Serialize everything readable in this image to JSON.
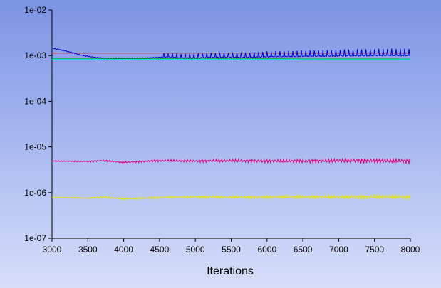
{
  "chart_data": {
    "type": "line",
    "title": "",
    "xlabel": "Iterations",
    "ylabel": "",
    "xlim": [
      3000,
      8000
    ],
    "ylim": [
      1e-07,
      0.01
    ],
    "yscale": "log",
    "grid": false,
    "legend": "none",
    "x_ticks": [
      "3000",
      "3500",
      "4000",
      "4500",
      "5000",
      "5500",
      "6000",
      "6500",
      "7000",
      "7500",
      "8000"
    ],
    "y_ticks": [
      "1e-07",
      "1e-06",
      "1e-05",
      "1e-04",
      "1e-03",
      "1e-02"
    ],
    "series": [
      {
        "color": "#d42020",
        "x": [
          3000,
          8000
        ],
        "y": [
          0.00113,
          0.00113
        ]
      },
      {
        "color": "#0000cc",
        "x": [
          3000,
          3200,
          3400,
          3600,
          3800,
          4000,
          4300,
          4600,
          4800,
          5000,
          5200,
          5400,
          5600,
          5800,
          6000,
          6500,
          7000,
          7500,
          8000
        ],
        "y": [
          0.00145,
          0.00125,
          0.00102,
          0.00091,
          0.00086,
          0.00087,
          0.00088,
          0.00093,
          0.00089,
          0.00088,
          0.00092,
          0.00092,
          0.00091,
          0.00092,
          0.00094,
          0.00096,
          0.00098,
          0.001,
          0.001
        ]
      },
      {
        "color": "#00aa00",
        "x": [
          3000,
          8000
        ],
        "y": [
          0.00085,
          0.00084
        ]
      },
      {
        "color": "#00e8e8",
        "x": [
          3000,
          8000
        ],
        "y": [
          0.00083,
          0.00082
        ]
      },
      {
        "color": "#e0007a",
        "x": [
          3000,
          3500,
          3700,
          4000,
          4500,
          5000,
          5500,
          6000,
          6500,
          7000,
          7500,
          8000
        ],
        "y": [
          4.9e-06,
          4.8e-06,
          5e-06,
          4.6e-06,
          5e-06,
          4.9e-06,
          5e-06,
          4.9e-06,
          4.9e-06,
          5e-06,
          5e-06,
          4.9e-06
        ]
      },
      {
        "color": "#e8e800",
        "x": [
          3000,
          3500,
          3700,
          4000,
          4500,
          5000,
          5500,
          6000,
          6500,
          7000,
          7500,
          8000
        ],
        "y": [
          7.8e-07,
          7.6e-07,
          8e-07,
          7.3e-07,
          7.8e-07,
          8.1e-07,
          7.9e-07,
          8e-07,
          8.1e-07,
          8e-07,
          8.1e-07,
          8e-07
        ]
      }
    ]
  }
}
